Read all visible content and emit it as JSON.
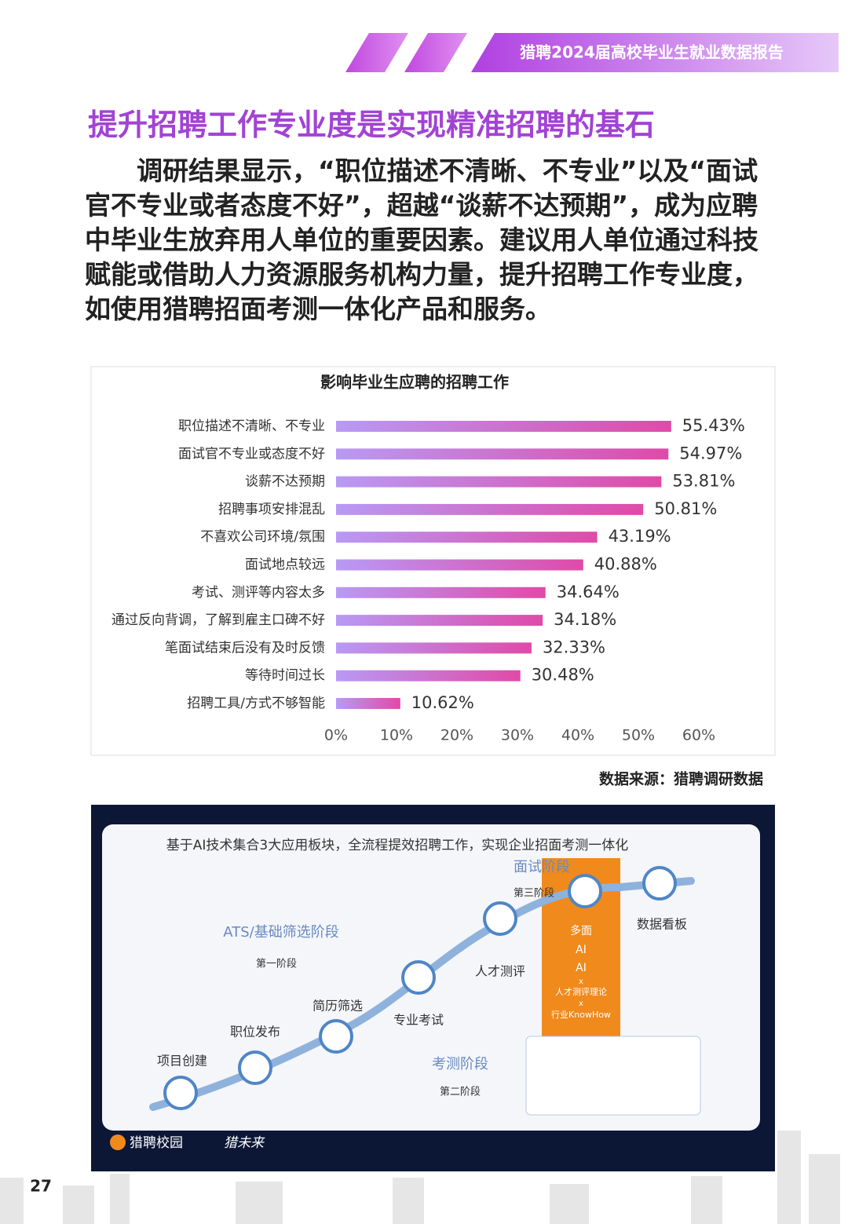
{
  "header": {
    "title": "猎聘2024届高校毕业生就业数据报告"
  },
  "heading": "提升招聘工作专业度是实现精准招聘的基石",
  "paragraph": "调研结果显示，“职位描述不清晰、不专业”以及“面试官不专业或者态度不好”，超越“谈薪不达预期”，成为应聘中毕业生放弃用人单位的重要因素。建议用人单位通过科技赋能或借助人力资源服务机构力量，提升招聘工作专业度，如使用猎聘招面考测一体化产品和服务。",
  "chart_data": {
    "type": "bar",
    "orientation": "horizontal",
    "title": "影响毕业生应聘的招聘工作",
    "categories": [
      "职位描述不清晰、不专业",
      "面试官不专业或态度不好",
      "谈薪不达预期",
      "招聘事项安排混乱",
      "不喜欢公司环境/氛围",
      "面试地点较远",
      "考试、测评等内容太多",
      "通过反向背调，了解到雇主口碑不好",
      "笔面试结束后没有及时反馈",
      "等待时间过长",
      "招聘工具/方式不够智能"
    ],
    "values": [
      55.43,
      54.97,
      53.81,
      50.81,
      43.19,
      40.88,
      34.64,
      34.18,
      32.33,
      30.48,
      10.62
    ],
    "value_labels": [
      "55.43%",
      "54.97%",
      "53.81%",
      "50.81%",
      "43.19%",
      "40.88%",
      "34.64%",
      "34.18%",
      "32.33%",
      "30.48%",
      "10.62%"
    ],
    "colors": [
      "#b89af5",
      "#e04aa8"
    ],
    "xlim": [
      0,
      60
    ],
    "xticks": [
      {
        "value": 0,
        "label": "0%"
      },
      {
        "value": 10,
        "label": "10%"
      },
      {
        "value": 20,
        "label": "20%"
      },
      {
        "value": 30,
        "label": "30%"
      },
      {
        "value": 40,
        "label": "40%"
      },
      {
        "value": 50,
        "label": "50%"
      },
      {
        "value": 60,
        "label": "60%"
      }
    ],
    "grid": false
  },
  "source": "数据来源：猎聘调研数据",
  "slide": {
    "title": "基于AI技术集合3大应用板块，全流程提效招聘工作，实现企业招面考测一体化",
    "stages": [
      {
        "name": "ATS/基础筛选阶段",
        "tag": "第一阶段"
      },
      {
        "name": "考测阶段",
        "tag": "第二阶段"
      },
      {
        "name": "面试阶段",
        "tag": "第三阶段"
      }
    ],
    "nodes": [
      "项目创建",
      "职位发布",
      "简历筛选",
      "专业考试",
      "人才测评",
      "数据看板"
    ],
    "interview": [
      "多面",
      "AI",
      "AI",
      "x",
      "人才测评理论",
      "x",
      "行业KnowHow"
    ],
    "logos": [
      "猎聘校园",
      "猎未来"
    ]
  },
  "page_number": "27"
}
